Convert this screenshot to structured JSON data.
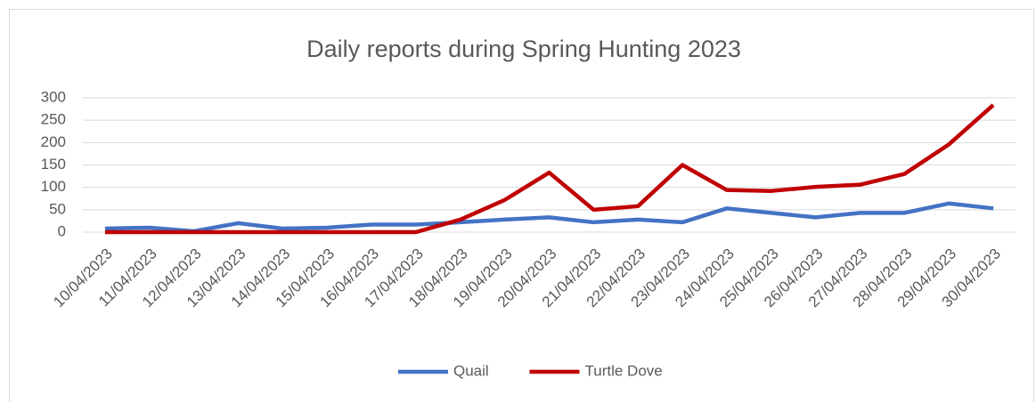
{
  "chart_data": {
    "type": "line",
    "title": "Daily reports during Spring Hunting 2023",
    "categories": [
      "10/04/2023",
      "11/04/2023",
      "12/04/2023",
      "13/04/2023",
      "14/04/2023",
      "15/04/2023",
      "16/04/2023",
      "17/04/2023",
      "18/04/2023",
      "19/04/2023",
      "20/04/2023",
      "21/04/2023",
      "22/04/2023",
      "23/04/2023",
      "24/04/2023",
      "25/04/2023",
      "26/04/2023",
      "27/04/2023",
      "28/04/2023",
      "29/04/2023",
      "30/04/2023"
    ],
    "series": [
      {
        "name": "Quail",
        "color": "#4472c4",
        "values": [
          8,
          10,
          2,
          20,
          8,
          10,
          17,
          17,
          22,
          28,
          33,
          22,
          28,
          22,
          53,
          43,
          33,
          43,
          43,
          64,
          53
        ]
      },
      {
        "name": "Turtle Dove",
        "color": "#c00000",
        "values": [
          0,
          0,
          0,
          0,
          0,
          0,
          0,
          0,
          28,
          72,
          133,
          50,
          58,
          150,
          94,
          92,
          101,
          106,
          130,
          196,
          284
        ]
      }
    ],
    "ylim": [
      0,
      300
    ],
    "yticks": [
      0,
      50,
      100,
      150,
      200,
      250,
      300
    ],
    "grid": true,
    "legend": "bottom"
  }
}
